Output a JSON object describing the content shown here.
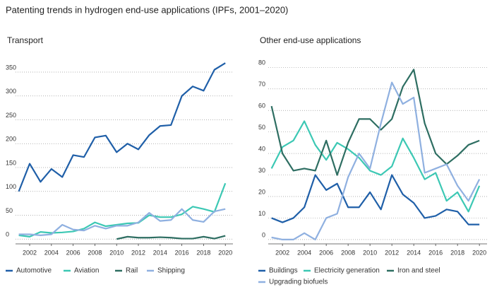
{
  "title": "Patenting trends in hydrogen end-use applications (IPFs, 2001–2020)",
  "chart_data": [
    {
      "type": "line",
      "title": "Transport",
      "x": [
        2001,
        2002,
        2003,
        2004,
        2005,
        2006,
        2007,
        2008,
        2009,
        2010,
        2011,
        2012,
        2013,
        2014,
        2015,
        2016,
        2017,
        2018,
        2019,
        2020
      ],
      "series": [
        {
          "name": "Automotive",
          "color": "#1f5fa8",
          "values": [
            100,
            158,
            120,
            147,
            130,
            176,
            172,
            213,
            217,
            182,
            200,
            188,
            218,
            237,
            239,
            300,
            320,
            311,
            355,
            369
          ]
        },
        {
          "name": "Aviation",
          "color": "#3cc8b4",
          "values": [
            8,
            5,
            15,
            13,
            14,
            16,
            22,
            35,
            27,
            30,
            33,
            34,
            50,
            46,
            46,
            52,
            68,
            63,
            57,
            117
          ]
        },
        {
          "name": "Rail",
          "color": "#2e6e62",
          "values": [
            null,
            null,
            null,
            null,
            null,
            null,
            null,
            null,
            null,
            0,
            5,
            3,
            3,
            4,
            3,
            1,
            1,
            5,
            1,
            7
          ]
        },
        {
          "name": "Shipping",
          "color": "#8fb0e0",
          "values": [
            10,
            10,
            8,
            10,
            30,
            20,
            18,
            28,
            22,
            28,
            28,
            35,
            55,
            38,
            40,
            63,
            40,
            36,
            58,
            63
          ]
        }
      ],
      "xlim": [
        2000.7,
        2020.7
      ],
      "xticks": [
        2002,
        2004,
        2006,
        2008,
        2010,
        2012,
        2014,
        2016,
        2018,
        2020
      ],
      "ylim": [
        -10,
        390
      ],
      "yticks": [
        0,
        50,
        100,
        150,
        200,
        250,
        300,
        350
      ],
      "grid": true
    },
    {
      "type": "line",
      "title": "Other end-use applications",
      "x": [
        2001,
        2002,
        2003,
        2004,
        2005,
        2006,
        2007,
        2008,
        2009,
        2010,
        2011,
        2012,
        2013,
        2014,
        2015,
        2016,
        2017,
        2018,
        2019,
        2020
      ],
      "series": [
        {
          "name": "Buildings",
          "color": "#1f5fa8",
          "values": [
            10,
            8,
            10,
            15,
            30,
            23,
            26,
            15,
            15,
            22,
            14,
            30,
            21,
            17,
            10,
            11,
            14,
            13,
            7,
            7
          ]
        },
        {
          "name": "Electricity generation",
          "color": "#3cc8b4",
          "values": [
            33,
            43,
            46,
            55,
            44,
            37,
            45,
            42,
            38,
            32,
            30,
            34,
            47,
            38,
            28,
            31,
            18,
            22,
            13,
            25
          ]
        },
        {
          "name": "Iron and steel",
          "color": "#2e6e62",
          "values": [
            62,
            40,
            32,
            33,
            32,
            46,
            30,
            45,
            56,
            56,
            51,
            56,
            71,
            79,
            54,
            40,
            35,
            39,
            44,
            46
          ]
        },
        {
          "name": "Upgrading biofuels",
          "color": "#8fb0e0",
          "values": [
            1,
            0,
            0,
            3,
            0,
            10,
            12,
            29,
            40,
            33,
            54,
            73,
            63,
            66,
            31,
            33,
            35,
            25,
            18,
            28
          ]
        }
      ],
      "xlim": [
        2000.7,
        2020.7
      ],
      "xticks": [
        2002,
        2004,
        2006,
        2008,
        2010,
        2012,
        2014,
        2016,
        2018,
        2020
      ],
      "ylim": [
        -2,
        87
      ],
      "yticks": [
        0,
        10,
        20,
        30,
        40,
        50,
        60,
        70,
        80
      ],
      "grid": true
    }
  ]
}
